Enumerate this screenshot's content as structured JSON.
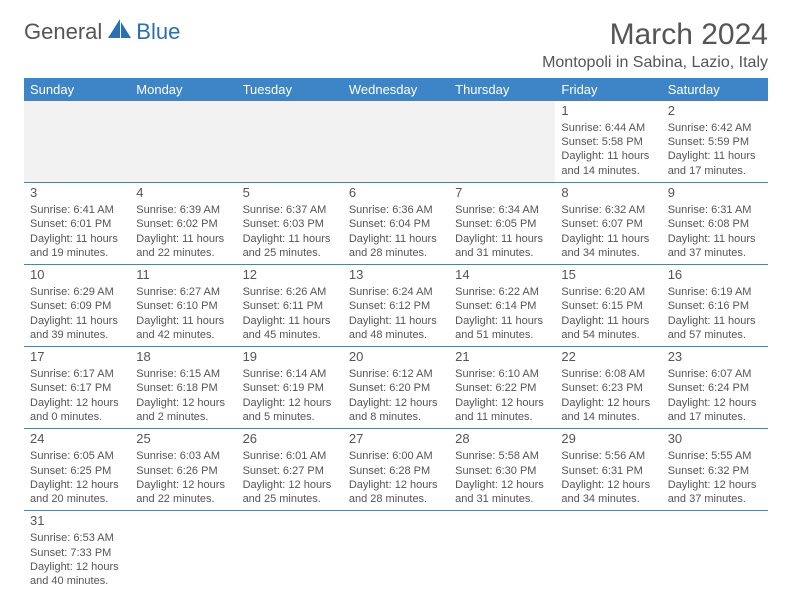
{
  "logo": {
    "brand_left": "General",
    "brand_right": "Blue"
  },
  "title": "March 2024",
  "subtitle": "Montopoli in Sabina, Lazio, Italy",
  "colors": {
    "header_bg": "#3d85c6",
    "header_text": "#ffffff",
    "empty_bg": "#f2f2f2",
    "text": "#555555",
    "border": "#3d85c6",
    "logo_accent": "#2a6fb0"
  },
  "weekdays": [
    "Sunday",
    "Monday",
    "Tuesday",
    "Wednesday",
    "Thursday",
    "Friday",
    "Saturday"
  ],
  "weeks": [
    [
      null,
      null,
      null,
      null,
      null,
      {
        "d": "1",
        "sunrise": "Sunrise: 6:44 AM",
        "sunset": "Sunset: 5:58 PM",
        "day1": "Daylight: 11 hours",
        "day2": "and 14 minutes."
      },
      {
        "d": "2",
        "sunrise": "Sunrise: 6:42 AM",
        "sunset": "Sunset: 5:59 PM",
        "day1": "Daylight: 11 hours",
        "day2": "and 17 minutes."
      }
    ],
    [
      {
        "d": "3",
        "sunrise": "Sunrise: 6:41 AM",
        "sunset": "Sunset: 6:01 PM",
        "day1": "Daylight: 11 hours",
        "day2": "and 19 minutes."
      },
      {
        "d": "4",
        "sunrise": "Sunrise: 6:39 AM",
        "sunset": "Sunset: 6:02 PM",
        "day1": "Daylight: 11 hours",
        "day2": "and 22 minutes."
      },
      {
        "d": "5",
        "sunrise": "Sunrise: 6:37 AM",
        "sunset": "Sunset: 6:03 PM",
        "day1": "Daylight: 11 hours",
        "day2": "and 25 minutes."
      },
      {
        "d": "6",
        "sunrise": "Sunrise: 6:36 AM",
        "sunset": "Sunset: 6:04 PM",
        "day1": "Daylight: 11 hours",
        "day2": "and 28 minutes."
      },
      {
        "d": "7",
        "sunrise": "Sunrise: 6:34 AM",
        "sunset": "Sunset: 6:05 PM",
        "day1": "Daylight: 11 hours",
        "day2": "and 31 minutes."
      },
      {
        "d": "8",
        "sunrise": "Sunrise: 6:32 AM",
        "sunset": "Sunset: 6:07 PM",
        "day1": "Daylight: 11 hours",
        "day2": "and 34 minutes."
      },
      {
        "d": "9",
        "sunrise": "Sunrise: 6:31 AM",
        "sunset": "Sunset: 6:08 PM",
        "day1": "Daylight: 11 hours",
        "day2": "and 37 minutes."
      }
    ],
    [
      {
        "d": "10",
        "sunrise": "Sunrise: 6:29 AM",
        "sunset": "Sunset: 6:09 PM",
        "day1": "Daylight: 11 hours",
        "day2": "and 39 minutes."
      },
      {
        "d": "11",
        "sunrise": "Sunrise: 6:27 AM",
        "sunset": "Sunset: 6:10 PM",
        "day1": "Daylight: 11 hours",
        "day2": "and 42 minutes."
      },
      {
        "d": "12",
        "sunrise": "Sunrise: 6:26 AM",
        "sunset": "Sunset: 6:11 PM",
        "day1": "Daylight: 11 hours",
        "day2": "and 45 minutes."
      },
      {
        "d": "13",
        "sunrise": "Sunrise: 6:24 AM",
        "sunset": "Sunset: 6:12 PM",
        "day1": "Daylight: 11 hours",
        "day2": "and 48 minutes."
      },
      {
        "d": "14",
        "sunrise": "Sunrise: 6:22 AM",
        "sunset": "Sunset: 6:14 PM",
        "day1": "Daylight: 11 hours",
        "day2": "and 51 minutes."
      },
      {
        "d": "15",
        "sunrise": "Sunrise: 6:20 AM",
        "sunset": "Sunset: 6:15 PM",
        "day1": "Daylight: 11 hours",
        "day2": "and 54 minutes."
      },
      {
        "d": "16",
        "sunrise": "Sunrise: 6:19 AM",
        "sunset": "Sunset: 6:16 PM",
        "day1": "Daylight: 11 hours",
        "day2": "and 57 minutes."
      }
    ],
    [
      {
        "d": "17",
        "sunrise": "Sunrise: 6:17 AM",
        "sunset": "Sunset: 6:17 PM",
        "day1": "Daylight: 12 hours",
        "day2": "and 0 minutes."
      },
      {
        "d": "18",
        "sunrise": "Sunrise: 6:15 AM",
        "sunset": "Sunset: 6:18 PM",
        "day1": "Daylight: 12 hours",
        "day2": "and 2 minutes."
      },
      {
        "d": "19",
        "sunrise": "Sunrise: 6:14 AM",
        "sunset": "Sunset: 6:19 PM",
        "day1": "Daylight: 12 hours",
        "day2": "and 5 minutes."
      },
      {
        "d": "20",
        "sunrise": "Sunrise: 6:12 AM",
        "sunset": "Sunset: 6:20 PM",
        "day1": "Daylight: 12 hours",
        "day2": "and 8 minutes."
      },
      {
        "d": "21",
        "sunrise": "Sunrise: 6:10 AM",
        "sunset": "Sunset: 6:22 PM",
        "day1": "Daylight: 12 hours",
        "day2": "and 11 minutes."
      },
      {
        "d": "22",
        "sunrise": "Sunrise: 6:08 AM",
        "sunset": "Sunset: 6:23 PM",
        "day1": "Daylight: 12 hours",
        "day2": "and 14 minutes."
      },
      {
        "d": "23",
        "sunrise": "Sunrise: 6:07 AM",
        "sunset": "Sunset: 6:24 PM",
        "day1": "Daylight: 12 hours",
        "day2": "and 17 minutes."
      }
    ],
    [
      {
        "d": "24",
        "sunrise": "Sunrise: 6:05 AM",
        "sunset": "Sunset: 6:25 PM",
        "day1": "Daylight: 12 hours",
        "day2": "and 20 minutes."
      },
      {
        "d": "25",
        "sunrise": "Sunrise: 6:03 AM",
        "sunset": "Sunset: 6:26 PM",
        "day1": "Daylight: 12 hours",
        "day2": "and 22 minutes."
      },
      {
        "d": "26",
        "sunrise": "Sunrise: 6:01 AM",
        "sunset": "Sunset: 6:27 PM",
        "day1": "Daylight: 12 hours",
        "day2": "and 25 minutes."
      },
      {
        "d": "27",
        "sunrise": "Sunrise: 6:00 AM",
        "sunset": "Sunset: 6:28 PM",
        "day1": "Daylight: 12 hours",
        "day2": "and 28 minutes."
      },
      {
        "d": "28",
        "sunrise": "Sunrise: 5:58 AM",
        "sunset": "Sunset: 6:30 PM",
        "day1": "Daylight: 12 hours",
        "day2": "and 31 minutes."
      },
      {
        "d": "29",
        "sunrise": "Sunrise: 5:56 AM",
        "sunset": "Sunset: 6:31 PM",
        "day1": "Daylight: 12 hours",
        "day2": "and 34 minutes."
      },
      {
        "d": "30",
        "sunrise": "Sunrise: 5:55 AM",
        "sunset": "Sunset: 6:32 PM",
        "day1": "Daylight: 12 hours",
        "day2": "and 37 minutes."
      }
    ],
    [
      {
        "d": "31",
        "sunrise": "Sunrise: 6:53 AM",
        "sunset": "Sunset: 7:33 PM",
        "day1": "Daylight: 12 hours",
        "day2": "and 40 minutes."
      },
      null,
      null,
      null,
      null,
      null,
      null
    ]
  ]
}
